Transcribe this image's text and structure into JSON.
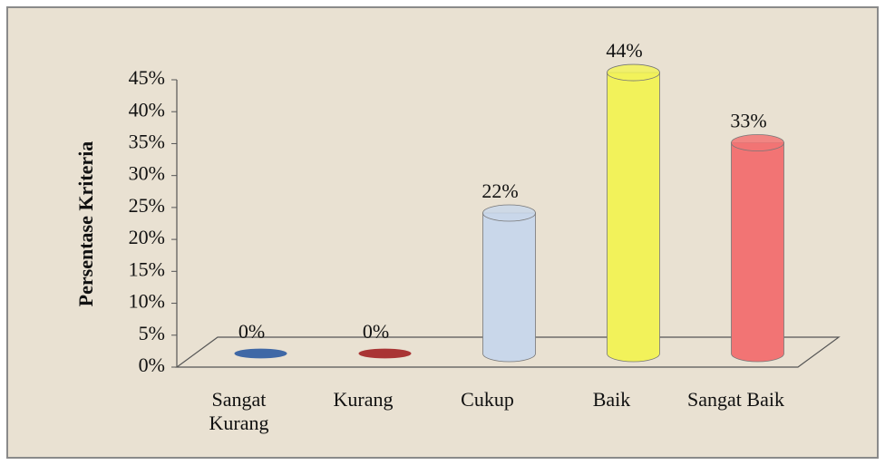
{
  "chart_data": {
    "type": "bar3d",
    "y_axis_label": "Persentase Kriteria",
    "categories": [
      "Sangat Kurang",
      "Kurang",
      "Cukup",
      "Baik",
      "Sangat Baik"
    ],
    "values": [
      0,
      0,
      22,
      44,
      33
    ],
    "value_labels": [
      "0%",
      "0%",
      "22%",
      "44%",
      "33%"
    ],
    "colors": [
      "#3f68a6",
      "#a93434",
      "#c9d7ea",
      "#f2f25a",
      "#f27474"
    ],
    "ylim": [
      0,
      45
    ],
    "yticks": [
      {
        "value": 0,
        "label": "0%"
      },
      {
        "value": 5,
        "label": "5%"
      },
      {
        "value": 10,
        "label": "10%"
      },
      {
        "value": 15,
        "label": "15%"
      },
      {
        "value": 20,
        "label": "20%"
      },
      {
        "value": 25,
        "label": "25%"
      },
      {
        "value": 30,
        "label": "30%"
      },
      {
        "value": 35,
        "label": "35%"
      },
      {
        "value": 40,
        "label": "40%"
      },
      {
        "value": 45,
        "label": "45%"
      }
    ]
  }
}
